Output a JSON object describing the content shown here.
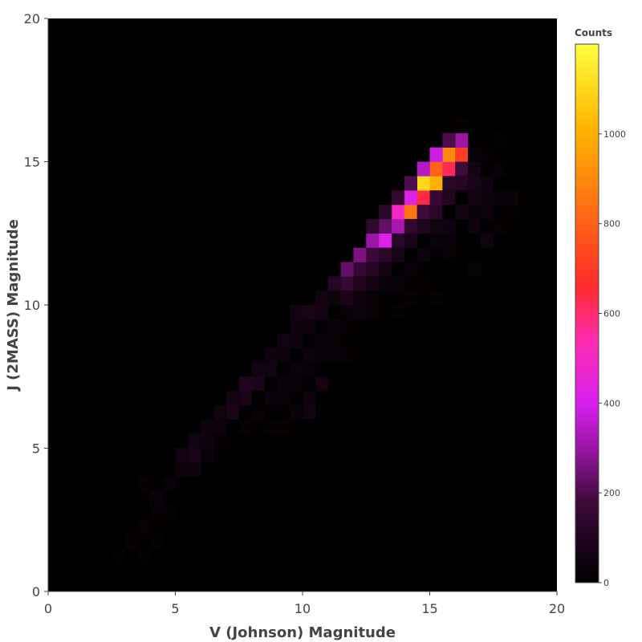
{
  "chart_data": {
    "type": "heatmap",
    "xlabel": "V (Johnson) Magnitude",
    "ylabel": "J (2MASS) Magnitude",
    "xlim": [
      0,
      20
    ],
    "ylim": [
      0,
      20
    ],
    "xticks": [
      0,
      5,
      10,
      15,
      20
    ],
    "yticks": [
      0,
      5,
      10,
      15,
      20
    ],
    "bin_size": 0.5,
    "colorscale": "hot",
    "colorbar": {
      "title": "Counts",
      "min": 0,
      "max": 1200,
      "ticks": [
        0,
        200,
        400,
        600,
        800,
        1000
      ]
    },
    "bins_note": "each entry: [x_center, y_center, count]",
    "bins": [
      [
        3.25,
        1.75,
        20
      ],
      [
        3.75,
        2.25,
        25
      ],
      [
        4.25,
        2.75,
        20
      ],
      [
        4.25,
        3.25,
        30
      ],
      [
        3.75,
        3.75,
        20
      ],
      [
        4.75,
        3.75,
        25
      ],
      [
        5.25,
        4.25,
        35
      ],
      [
        5.75,
        4.25,
        40
      ],
      [
        5.25,
        4.75,
        60
      ],
      [
        5.75,
        4.75,
        80
      ],
      [
        5.75,
        5.25,
        50
      ],
      [
        6.25,
        5.25,
        45
      ],
      [
        6.25,
        5.75,
        40
      ],
      [
        6.75,
        5.75,
        40
      ],
      [
        6.25,
        4.75,
        30
      ],
      [
        6.75,
        6.25,
        50
      ],
      [
        7.25,
        6.25,
        70
      ],
      [
        7.25,
        6.75,
        60
      ],
      [
        7.75,
        6.75,
        75
      ],
      [
        7.75,
        7.25,
        95
      ],
      [
        8.25,
        7.25,
        80
      ],
      [
        8.25,
        7.75,
        60
      ],
      [
        8.75,
        7.75,
        50
      ],
      [
        8.75,
        8.25,
        45
      ],
      [
        9.25,
        8.25,
        40
      ],
      [
        9.25,
        8.75,
        55
      ],
      [
        9.75,
        8.75,
        35
      ],
      [
        9.75,
        9.25,
        45
      ],
      [
        10.25,
        9.25,
        40
      ],
      [
        9.75,
        9.75,
        50
      ],
      [
        10.25,
        9.75,
        70
      ],
      [
        10.75,
        9.75,
        60
      ],
      [
        10.75,
        10.25,
        55
      ],
      [
        11.25,
        10.25,
        40
      ],
      [
        11.25,
        10.75,
        110
      ],
      [
        11.75,
        10.75,
        160
      ],
      [
        11.75,
        11.25,
        230
      ],
      [
        12.25,
        11.25,
        160
      ],
      [
        12.25,
        11.75,
        260
      ],
      [
        12.75,
        11.75,
        170
      ],
      [
        12.75,
        12.25,
        300
      ],
      [
        13.25,
        12.25,
        420
      ],
      [
        13.25,
        12.75,
        230
      ],
      [
        13.75,
        12.75,
        320
      ],
      [
        13.75,
        13.25,
        500
      ],
      [
        14.25,
        13.25,
        850
      ],
      [
        14.25,
        13.75,
        420
      ],
      [
        14.75,
        13.75,
        640
      ],
      [
        14.75,
        14.25,
        1100
      ],
      [
        15.25,
        14.25,
        1000
      ],
      [
        15.25,
        14.75,
        800
      ],
      [
        15.75,
        14.75,
        620
      ],
      [
        15.75,
        15.25,
        900
      ],
      [
        16.25,
        15.25,
        700
      ],
      [
        16.25,
        15.75,
        300
      ],
      [
        15.75,
        15.75,
        200
      ],
      [
        14.25,
        14.25,
        200
      ],
      [
        13.75,
        13.75,
        150
      ],
      [
        13.25,
        13.25,
        120
      ],
      [
        12.75,
        12.75,
        140
      ],
      [
        15.25,
        15.25,
        380
      ],
      [
        14.75,
        14.75,
        340
      ],
      [
        15.75,
        14.25,
        120
      ],
      [
        16.25,
        14.75,
        180
      ],
      [
        16.25,
        14.25,
        110
      ],
      [
        16.75,
        14.25,
        70
      ],
      [
        16.75,
        14.75,
        60
      ],
      [
        17.25,
        14.25,
        45
      ],
      [
        14.75,
        13.25,
        180
      ],
      [
        15.25,
        13.25,
        120
      ],
      [
        15.25,
        13.75,
        160
      ],
      [
        15.75,
        13.75,
        100
      ],
      [
        14.25,
        12.75,
        150
      ],
      [
        14.75,
        12.75,
        90
      ],
      [
        13.75,
        12.25,
        120
      ],
      [
        14.25,
        12.25,
        80
      ],
      [
        13.25,
        11.75,
        130
      ],
      [
        13.75,
        11.75,
        70
      ],
      [
        12.75,
        11.25,
        110
      ],
      [
        13.25,
        11.25,
        60
      ],
      [
        12.25,
        10.75,
        90
      ],
      [
        12.75,
        10.75,
        55
      ],
      [
        11.75,
        10.25,
        80
      ],
      [
        12.25,
        10.25,
        40
      ],
      [
        16.75,
        13.75,
        60
      ],
      [
        17.25,
        13.75,
        40
      ],
      [
        17.75,
        13.75,
        30
      ],
      [
        18.25,
        13.75,
        30
      ],
      [
        17.25,
        13.25,
        35
      ],
      [
        16.75,
        13.25,
        30
      ],
      [
        17.25,
        12.25,
        50
      ],
      [
        16.75,
        12.75,
        40
      ],
      [
        15.25,
        12.75,
        50
      ],
      [
        15.75,
        12.75,
        45
      ],
      [
        16.25,
        13.25,
        60
      ],
      [
        14.75,
        11.75,
        40
      ],
      [
        15.25,
        12.25,
        35
      ],
      [
        15.75,
        12.25,
        30
      ],
      [
        14.25,
        11.25,
        30
      ],
      [
        13.75,
        10.75,
        25
      ],
      [
        13.25,
        10.75,
        30
      ],
      [
        12.75,
        10.25,
        25
      ],
      [
        12.25,
        9.75,
        40
      ],
      [
        12.75,
        9.75,
        25
      ],
      [
        11.75,
        9.75,
        25
      ],
      [
        11.25,
        9.25,
        30
      ],
      [
        11.75,
        9.25,
        20
      ],
      [
        10.75,
        8.75,
        30
      ],
      [
        11.25,
        8.75,
        25
      ],
      [
        10.25,
        8.25,
        40
      ],
      [
        10.75,
        8.25,
        25
      ],
      [
        9.75,
        7.75,
        35
      ],
      [
        10.25,
        7.75,
        25
      ],
      [
        9.25,
        7.25,
        30
      ],
      [
        9.75,
        7.25,
        25
      ],
      [
        8.75,
        6.75,
        30
      ],
      [
        9.25,
        6.75,
        25
      ],
      [
        8.25,
        6.25,
        25
      ],
      [
        10.25,
        6.25,
        50
      ],
      [
        10.25,
        6.75,
        40
      ],
      [
        9.75,
        6.25,
        30
      ],
      [
        10.75,
        7.25,
        60
      ],
      [
        11.25,
        8.25,
        25
      ],
      [
        11.75,
        8.25,
        20
      ],
      [
        15.75,
        11.75,
        25
      ],
      [
        16.75,
        11.25,
        30
      ],
      [
        17.75,
        12.75,
        25
      ],
      [
        18.25,
        13.25,
        20
      ],
      [
        17.25,
        15.25,
        20
      ],
      [
        17.75,
        14.75,
        25
      ],
      [
        16.75,
        15.25,
        25
      ],
      [
        16.25,
        16.25,
        20
      ],
      [
        17.75,
        15.75,
        15
      ],
      [
        15.25,
        10.25,
        20
      ],
      [
        14.25,
        10.25,
        20
      ],
      [
        13.75,
        9.75,
        15
      ],
      [
        14.75,
        10.75,
        20
      ],
      [
        9.25,
        5.75,
        20
      ],
      [
        8.75,
        5.75,
        20
      ],
      [
        7.75,
        5.75,
        20
      ],
      [
        6.75,
        5.25,
        20
      ],
      [
        4.75,
        2.75,
        15
      ],
      [
        3.75,
        1.25,
        12
      ],
      [
        4.25,
        1.75,
        15
      ],
      [
        2.75,
        1.25,
        10
      ]
    ]
  }
}
